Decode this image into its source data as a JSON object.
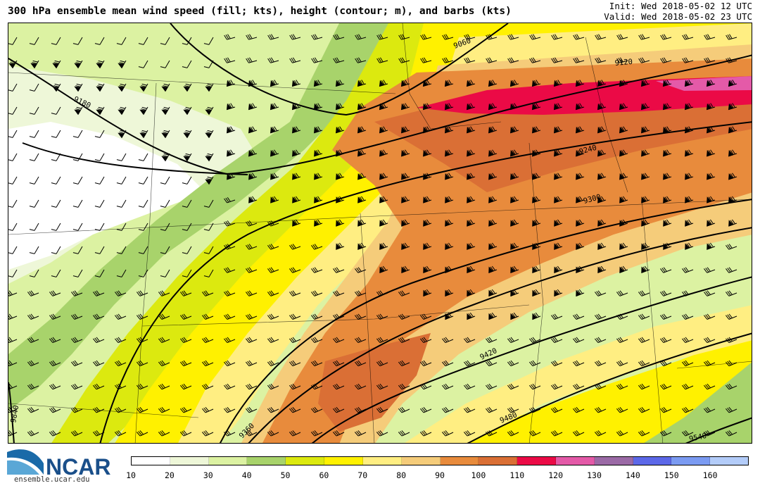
{
  "header": {
    "title": "300 hPa ensemble mean wind speed (fill; kts), height (contour; m), and barbs (kts)",
    "init": "Init: Wed 2018-05-02 12 UTC",
    "valid": "Valid: Wed 2018-05-02 23 UTC"
  },
  "logo": {
    "name": "NCAR",
    "url": "ensemble.ucar.edu"
  },
  "map": {
    "contour_labels": [
      "9060",
      "9120",
      "9180",
      "9240",
      "9300",
      "9360",
      "9420",
      "9480",
      "9540",
      "9840"
    ]
  },
  "colorbar": {
    "colors": [
      "#ffffff",
      "#eef7d8",
      "#dcf2a2",
      "#a8d36b",
      "#dce90f",
      "#fff100",
      "#ffee82",
      "#f5cc7a",
      "#e88b3c",
      "#da6f35",
      "#eb0a46",
      "#e45aa8",
      "#9b6aa6",
      "#5c68e8",
      "#7b9bf2",
      "#b3ccf9"
    ],
    "ticks": [
      "10",
      "20",
      "30",
      "40",
      "50",
      "60",
      "70",
      "80",
      "90",
      "100",
      "110",
      "120",
      "130",
      "140",
      "150",
      "160"
    ]
  }
}
